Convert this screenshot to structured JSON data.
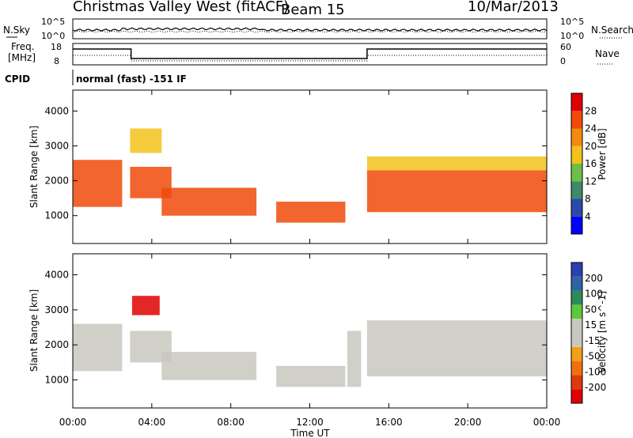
{
  "header": {
    "station": "Christmas Valley West (fitACF)",
    "beam": "Beam 15",
    "date": "10/Mar/2013"
  },
  "strip_panels": {
    "noise_left_label": "N.Sky",
    "noise_right_label": "N.Search",
    "noise_ticks": [
      "10^5",
      "10^0"
    ],
    "freq_left_label_1": "Freq.",
    "freq_left_label_2": "[MHz]",
    "freq_ticks": [
      "18",
      "8"
    ],
    "nave_label": "Nave",
    "nave_ticks": [
      "60",
      "0"
    ],
    "cpid_label": "CPID",
    "cpid_text": "normal (fast) -151 IF"
  },
  "colors": {
    "power_scale": [
      "#0000ff",
      "#2b4aa8",
      "#3c8a6b",
      "#6cc047",
      "#f2c21a",
      "#f28a10",
      "#f04a0a",
      "#e00000"
    ],
    "velocity_scale": [
      "#2b3fb0",
      "#2f63a6",
      "#2e8b57",
      "#5ec83c",
      "#c8c8c0",
      "#c8c8c0",
      "#f2a015",
      "#f07010",
      "#e03a0a",
      "#e00000"
    ]
  },
  "chart_data": [
    {
      "type": "heatmap",
      "panel": "power",
      "ylabel": "Slant Range [km]",
      "xlabel": "Time UT",
      "x_ticks": [
        "00:00",
        "04:00",
        "08:00",
        "12:00",
        "16:00",
        "20:00",
        "00:00"
      ],
      "y_ticks": [
        "1000",
        "2000",
        "3000",
        "4000"
      ],
      "ylim": [
        200,
        4600
      ],
      "xlim_hours": [
        0,
        24
      ],
      "colorbar_label": "Power [dB]",
      "colorbar_ticks": [
        "4",
        "8",
        "12",
        "16",
        "20",
        "24",
        "28"
      ],
      "colorbar_range": [
        0,
        32
      ],
      "regions": [
        {
          "t0": 0.0,
          "t1": 2.5,
          "r0": 1250,
          "r1": 2600,
          "value": 26
        },
        {
          "t0": 2.9,
          "t1": 5.0,
          "r0": 1500,
          "r1": 2400,
          "value": 24
        },
        {
          "t0": 2.9,
          "t1": 4.5,
          "r0": 2800,
          "r1": 3500,
          "value": 18
        },
        {
          "t0": 4.5,
          "t1": 9.3,
          "r0": 1000,
          "r1": 1800,
          "value": 26
        },
        {
          "t0": 10.3,
          "t1": 13.8,
          "r0": 800,
          "r1": 1400,
          "value": 24
        },
        {
          "t0": 14.9,
          "t1": 24.0,
          "r0": 1100,
          "r1": 2300,
          "value": 27
        },
        {
          "t0": 14.9,
          "t1": 24.0,
          "r0": 2300,
          "r1": 2700,
          "value": 16
        }
      ]
    },
    {
      "type": "heatmap",
      "panel": "velocity",
      "ylabel": "Slant Range [km]",
      "xlabel": "Time UT",
      "x_ticks": [
        "00:00",
        "04:00",
        "08:00",
        "12:00",
        "16:00",
        "20:00",
        "00:00"
      ],
      "y_ticks": [
        "1000",
        "2000",
        "3000",
        "4000"
      ],
      "ylim": [
        200,
        4600
      ],
      "xlim_hours": [
        0,
        24
      ],
      "colorbar_label": "Velocity [m s^-1]",
      "colorbar_ticks": [
        "200",
        "100",
        "50",
        "15",
        "-15",
        "-50",
        "-100",
        "-200"
      ],
      "colorbar_range": [
        -250,
        250
      ],
      "regions": [
        {
          "t0": 0.0,
          "t1": 2.5,
          "r0": 1250,
          "r1": 2600,
          "value": 0
        },
        {
          "t0": 2.9,
          "t1": 5.0,
          "r0": 1500,
          "r1": 2400,
          "value": 0
        },
        {
          "t0": 3.0,
          "t1": 4.4,
          "r0": 2850,
          "r1": 3400,
          "value": -210
        },
        {
          "t0": 4.5,
          "t1": 9.3,
          "r0": 1000,
          "r1": 1800,
          "value": 30
        },
        {
          "t0": 10.3,
          "t1": 13.8,
          "r0": 800,
          "r1": 1400,
          "value": 0
        },
        {
          "t0": 13.9,
          "t1": 14.6,
          "r0": 800,
          "r1": 2400,
          "value": 40
        },
        {
          "t0": 14.9,
          "t1": 24.0,
          "r0": 1100,
          "r1": 2700,
          "value": 0
        }
      ]
    }
  ]
}
